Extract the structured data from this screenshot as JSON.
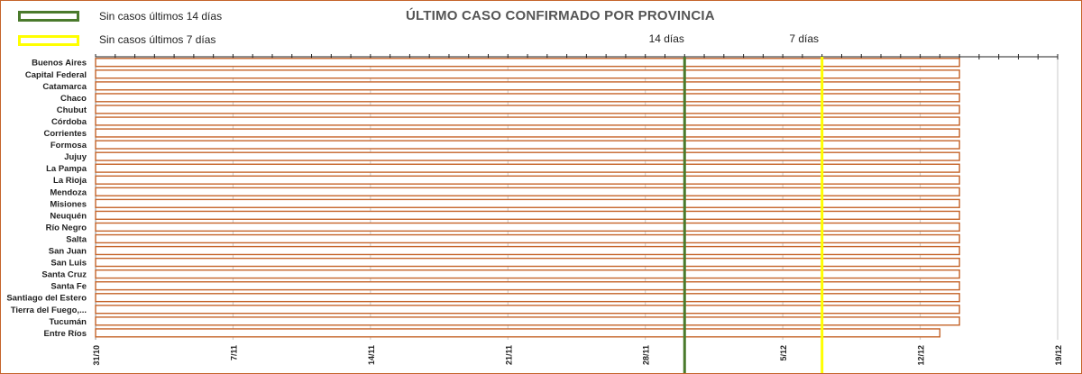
{
  "legend": {
    "items": [
      {
        "label": "Sin casos últimos 14 días",
        "color": "#4a7a2c"
      },
      {
        "label": "Sin casos últimos 7 días",
        "color": "#ffff00"
      }
    ]
  },
  "colors": {
    "bar": "#c5642a",
    "frame": "#c5642a",
    "grid": "#c8c8c8",
    "axis": "#222222"
  },
  "chart_data": {
    "type": "bar",
    "orientation": "horizontal",
    "title": "ÚLTIMO CASO CONFIRMADO POR PROVINCIA",
    "xlabel": "",
    "ylabel": "",
    "x_axis_type": "date",
    "xlim": [
      "31/10",
      "19/12"
    ],
    "x_ticks": [
      "31/10",
      "7/11",
      "14/11",
      "21/11",
      "28/11",
      "5/12",
      "12/12",
      "19/12"
    ],
    "grid": true,
    "categories": [
      "Buenos Aires",
      "Capital Federal",
      "Catamarca",
      "Chaco",
      "Chubut",
      "Córdoba",
      "Corrientes",
      "Formosa",
      "Jujuy",
      "La Pampa",
      "La Rioja",
      "Mendoza",
      "Misiones",
      "Neuquén",
      "Río Negro",
      "Salta",
      "San Juan",
      "San Luis",
      "Santa Cruz",
      "Santa Fe",
      "Santiago del Estero",
      "Tierra del Fuego,...",
      "Tucumán",
      "Entre Ríos"
    ],
    "values": [
      "14/12",
      "14/12",
      "14/12",
      "14/12",
      "14/12",
      "14/12",
      "14/12",
      "14/12",
      "14/12",
      "14/12",
      "14/12",
      "14/12",
      "14/12",
      "14/12",
      "14/12",
      "14/12",
      "14/12",
      "14/12",
      "14/12",
      "14/12",
      "14/12",
      "14/12",
      "14/12",
      "13/12"
    ],
    "reference_lines": [
      {
        "label": "14 días",
        "x": "30/11",
        "color": "#4a7a2c"
      },
      {
        "label": "7 días",
        "x": "7/12",
        "color": "#ffff00"
      }
    ]
  }
}
